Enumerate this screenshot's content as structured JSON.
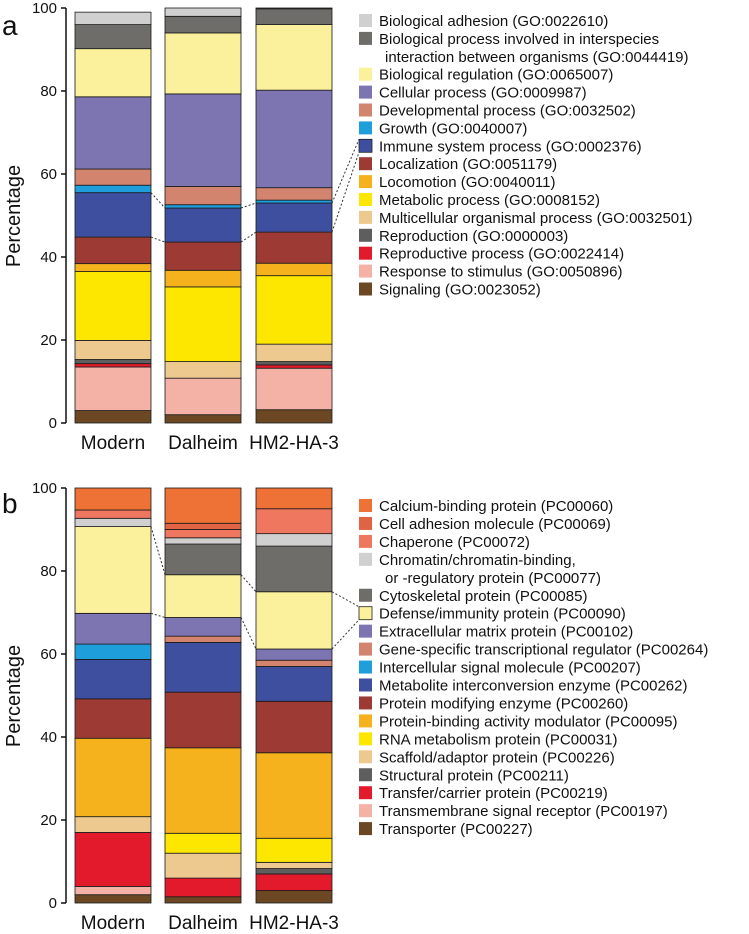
{
  "chart_data": [
    {
      "type": "bar",
      "stacked": true,
      "panel_label": "a",
      "ylabel": "Percentage",
      "ylim": [
        0,
        100
      ],
      "yticks": [
        0,
        20,
        40,
        60,
        80,
        100
      ],
      "categories": [
        "Modern",
        "Dalheim",
        "HM2-HA-3"
      ],
      "series": [
        {
          "name": "Signaling (GO:0023052)",
          "color": "#6b4823",
          "values": [
            3.0,
            2.0,
            3.2
          ]
        },
        {
          "name": "Response to stimulus (GO:0050896)",
          "color": "#f4b2a6",
          "values": [
            10.5,
            8.8,
            10.0
          ]
        },
        {
          "name": "Reproductive process (GO:0022414)",
          "color": "#e31a2c",
          "values": [
            0.8,
            0.0,
            0.8
          ]
        },
        {
          "name": "Reproduction (GO:0000003)",
          "color": "#5e5e5e",
          "values": [
            1.0,
            0.0,
            0.8
          ]
        },
        {
          "name": "Multicellular organismal process (GO:0032501)",
          "color": "#edc98f",
          "values": [
            4.6,
            4.0,
            4.2
          ]
        },
        {
          "name": "Metabolic process (GO:0008152)",
          "color": "#fde600",
          "values": [
            16.6,
            18.0,
            16.5
          ]
        },
        {
          "name": "Locomotion (GO:0040011)",
          "color": "#f6b21d",
          "values": [
            1.9,
            4.0,
            3.0
          ]
        },
        {
          "name": "Localization (GO:0051179)",
          "color": "#9c3a33",
          "values": [
            6.4,
            6.8,
            7.5
          ]
        },
        {
          "name": "Immune system process (GO:0002376)",
          "color": "#3f4fa0",
          "values": [
            10.7,
            8.2,
            7.0
          ]
        },
        {
          "name": "Growth (GO:0040007)",
          "color": "#1e9fdc",
          "values": [
            1.8,
            0.8,
            0.7
          ]
        },
        {
          "name": "Developmental process (GO:0032502)",
          "color": "#d3846f",
          "values": [
            3.9,
            4.4,
            3.0
          ]
        },
        {
          "name": "Cellular process (GO:0009987)",
          "color": "#7c75b2",
          "values": [
            17.4,
            22.3,
            23.5
          ]
        },
        {
          "name": "Biological regulation (GO:0065007)",
          "color": "#fbf09b",
          "values": [
            11.6,
            14.7,
            15.8
          ]
        },
        {
          "name": "Biological process involved in interspecies interaction between organisms (GO:0044419)",
          "color": "#6f6d69",
          "values": [
            5.8,
            4.0,
            3.8
          ]
        },
        {
          "name": "Biological adhesion (GO:0022610)",
          "color": "#d0d0d0",
          "values": [
            3.0,
            2.0,
            0.2
          ]
        }
      ],
      "legend": [
        {
          "label": "Biological adhesion (GO:0022610)",
          "color": "#d0d0d0"
        },
        {
          "label": "Biological process involved in interspecies",
          "continuation": "interaction between organisms (GO:0044419)",
          "color": "#6f6d69"
        },
        {
          "label": "Biological regulation (GO:0065007)",
          "color": "#fbf09b"
        },
        {
          "label": "Cellular process (GO:0009987)",
          "color": "#7c75b2"
        },
        {
          "label": "Developmental process (GO:0032502)",
          "color": "#d3846f"
        },
        {
          "label": "Growth (GO:0040007)",
          "color": "#1e9fdc"
        },
        {
          "label": "Immune system process (GO:0002376)",
          "color": "#3f4fa0"
        },
        {
          "label": "Localization (GO:0051179)",
          "color": "#9c3a33"
        },
        {
          "label": "Locomotion (GO:0040011)",
          "color": "#f6b21d"
        },
        {
          "label": "Metabolic process (GO:0008152)",
          "color": "#fde600"
        },
        {
          "label": "Multicellular organismal process (GO:0032501)",
          "color": "#edc98f"
        },
        {
          "label": "Reproduction (GO:0000003)",
          "color": "#5e5e5e"
        },
        {
          "label": "Reproductive process (GO:0022414)",
          "color": "#e31a2c"
        },
        {
          "label": "Response to stimulus (GO:0050896)",
          "color": "#f4b2a6"
        },
        {
          "label": "Signaling (GO:0023052)",
          "color": "#6b4823"
        }
      ],
      "highlight_series": "Immune system process (GO:0002376)"
    },
    {
      "type": "bar",
      "stacked": true,
      "panel_label": "b",
      "ylabel": "Percentage",
      "ylim": [
        0,
        100
      ],
      "yticks": [
        0,
        20,
        40,
        60,
        80,
        100
      ],
      "categories": [
        "Modern",
        "Dalheim",
        "HM2-HA-3"
      ],
      "series": [
        {
          "name": "Transporter (PC00227)",
          "color": "#6b4823",
          "values": [
            2.0,
            1.5,
            3.0
          ]
        },
        {
          "name": "Transmembrane signal receptor (PC00197)",
          "color": "#f4b2a6",
          "values": [
            2.0,
            0.0,
            0.0
          ]
        },
        {
          "name": "Transfer/carrier protein (PC00219)",
          "color": "#e31a2c",
          "values": [
            13.0,
            4.5,
            4.0
          ]
        },
        {
          "name": "Structural protein (PC00211)",
          "color": "#5e5e5e",
          "values": [
            0.0,
            0.0,
            1.3
          ]
        },
        {
          "name": "Scaffold/adaptor protein (PC00226)",
          "color": "#edc98f",
          "values": [
            3.8,
            6.0,
            1.5
          ]
        },
        {
          "name": "RNA metabolism protein (PC00031)",
          "color": "#fde600",
          "values": [
            0.0,
            4.8,
            5.8
          ]
        },
        {
          "name": "Protein-binding activity modulator (PC00095)",
          "color": "#f6b21d",
          "values": [
            18.9,
            20.6,
            20.6
          ]
        },
        {
          "name": "Protein modifying enzyme (PC00260)",
          "color": "#9c3a33",
          "values": [
            9.5,
            13.4,
            12.4
          ]
        },
        {
          "name": "Metabolite interconversion enzyme (PC00262)",
          "color": "#3f4fa0",
          "values": [
            9.5,
            12.0,
            8.4
          ]
        },
        {
          "name": "Intercellular signal molecule (PC00207)",
          "color": "#1e9fdc",
          "values": [
            3.7,
            0.0,
            0.0
          ]
        },
        {
          "name": "Gene-specific transcriptional regulator (PC00264)",
          "color": "#d3846f",
          "values": [
            0.0,
            1.5,
            1.5
          ]
        },
        {
          "name": "Extracellular matrix protein (PC00102)",
          "color": "#7c75b2",
          "values": [
            7.4,
            4.5,
            2.7
          ]
        },
        {
          "name": "Defense/immunity protein (PC00090)",
          "color": "#fbf09b",
          "values": [
            20.9,
            10.3,
            13.8
          ]
        },
        {
          "name": "Cytoskeletal protein (PC00085)",
          "color": "#6f6d69",
          "values": [
            0.0,
            7.4,
            11.0
          ]
        },
        {
          "name": "Chromatin/chromatin-binding, or -regulatory protein (PC00077)",
          "color": "#d0d0d0",
          "values": [
            2.0,
            1.5,
            3.0
          ]
        },
        {
          "name": "Chaperone (PC00072)",
          "color": "#ef7760",
          "values": [
            2.0,
            2.0,
            6.0
          ]
        },
        {
          "name": "Cell adhesion molecule (PC00069)",
          "color": "#e06444",
          "values": [
            0.0,
            1.5,
            0.0
          ]
        },
        {
          "name": "Calcium-binding protein (PC00060)",
          "color": "#ee7235",
          "values": [
            5.3,
            8.5,
            5.0
          ]
        }
      ],
      "legend": [
        {
          "label": "Calcium-binding protein (PC00060)",
          "color": "#ee7235"
        },
        {
          "label": "Cell adhesion molecule (PC00069)",
          "color": "#e06444"
        },
        {
          "label": "Chaperone (PC00072)",
          "color": "#ef7760"
        },
        {
          "label": "Chromatin/chromatin-binding,",
          "continuation": "or -regulatory protein (PC00077)",
          "color": "#d0d0d0"
        },
        {
          "label": "Cytoskeletal protein (PC00085)",
          "color": "#6f6d69"
        },
        {
          "label": "Defense/immunity protein (PC00090)",
          "color": "#fbf09b"
        },
        {
          "label": "Extracellular matrix protein (PC00102)",
          "color": "#7c75b2"
        },
        {
          "label": "Gene-specific transcriptional regulator (PC00264)",
          "color": "#d3846f"
        },
        {
          "label": "Intercellular signal molecule (PC00207)",
          "color": "#1e9fdc"
        },
        {
          "label": "Metabolite interconversion enzyme (PC00262)",
          "color": "#3f4fa0"
        },
        {
          "label": "Protein modifying enzyme (PC00260)",
          "color": "#9c3a33"
        },
        {
          "label": "Protein-binding activity modulator (PC00095)",
          "color": "#f6b21d"
        },
        {
          "label": "RNA metabolism protein (PC00031)",
          "color": "#fde600"
        },
        {
          "label": "Scaffold/adaptor protein (PC00226)",
          "color": "#edc98f"
        },
        {
          "label": "Structural protein (PC00211)",
          "color": "#5e5e5e"
        },
        {
          "label": "Transfer/carrier protein (PC00219)",
          "color": "#e31a2c"
        },
        {
          "label": "Transmembrane signal receptor (PC00197)",
          "color": "#f4b2a6"
        },
        {
          "label": "Transporter (PC00227)",
          "color": "#6b4823"
        }
      ],
      "highlight_series": "Defense/immunity protein (PC00090)"
    }
  ]
}
